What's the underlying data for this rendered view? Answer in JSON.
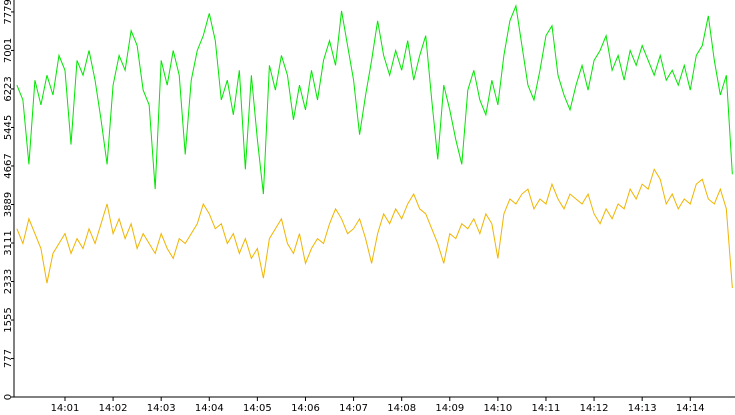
{
  "chart_data": {
    "type": "line",
    "x": [
      840,
      840.125,
      840.25,
      840.375,
      840.5,
      840.625,
      840.75,
      840.875,
      841,
      841.125,
      841.25,
      841.375,
      841.5,
      841.625,
      841.75,
      841.875,
      842,
      842.125,
      842.25,
      842.375,
      842.5,
      842.625,
      842.75,
      842.875,
      843,
      843.125,
      843.25,
      843.375,
      843.5,
      843.625,
      843.75,
      843.875,
      844,
      844.125,
      844.25,
      844.375,
      844.5,
      844.625,
      844.75,
      844.875,
      845,
      845.125,
      845.25,
      845.375,
      845.5,
      845.625,
      845.75,
      845.875,
      846,
      846.125,
      846.25,
      846.375,
      846.5,
      846.625,
      846.75,
      846.875,
      847,
      847.125,
      847.25,
      847.375,
      847.5,
      847.625,
      847.75,
      847.875,
      848,
      848.125,
      848.25,
      848.375,
      848.5,
      848.625,
      848.75,
      848.875,
      849,
      849.125,
      849.25,
      849.375,
      849.5,
      849.625,
      849.75,
      849.875,
      850,
      850.125,
      850.25,
      850.375,
      850.5,
      850.625,
      850.75,
      850.875,
      851,
      851.125,
      851.25,
      851.375,
      851.5,
      851.625,
      851.75,
      851.875,
      852,
      852.125,
      852.25,
      852.375,
      852.5,
      852.625,
      852.75,
      852.875,
      853,
      853.125,
      853.25,
      853.375,
      853.5,
      853.625,
      853.75,
      853.875,
      854,
      854.125,
      854.25,
      854.375,
      854.5,
      854.625,
      854.75,
      854.875
    ],
    "series": [
      {
        "color": "#00e600",
        "values": [
          6300,
          6000,
          4700,
          6400,
          5900,
          6500,
          6100,
          6900,
          6600,
          5100,
          6800,
          6500,
          7000,
          6400,
          5600,
          4700,
          6300,
          6900,
          6600,
          7400,
          7100,
          6200,
          5900,
          4200,
          6800,
          6300,
          7000,
          6500,
          4900,
          6400,
          7000,
          7300,
          7750,
          7200,
          6000,
          6400,
          5700,
          6600,
          4600,
          6500,
          5200,
          4100,
          6700,
          6200,
          6900,
          6500,
          5600,
          6300,
          5800,
          6600,
          6000,
          6800,
          7200,
          6700,
          7800,
          7100,
          6400,
          5300,
          6100,
          6800,
          7600,
          6900,
          6500,
          7000,
          6600,
          7200,
          6400,
          6900,
          7300,
          6000,
          4800,
          6300,
          5800,
          5200,
          4700,
          6200,
          6600,
          6000,
          5700,
          6400,
          5900,
          6900,
          7600,
          7900,
          7100,
          6300,
          6000,
          6600,
          7300,
          7500,
          6500,
          6100,
          5800,
          6300,
          6700,
          6200,
          6800,
          7000,
          7300,
          6600,
          6900,
          6400,
          7000,
          6700,
          7100,
          6800,
          6500,
          6900,
          6400,
          6600,
          6300,
          6700,
          6200,
          6900,
          7100,
          7700,
          6800,
          6100,
          6500,
          4500
        ]
      },
      {
        "color": "#f0b400",
        "values": [
          3400,
          3100,
          3600,
          3300,
          3000,
          2300,
          2900,
          3100,
          3300,
          2900,
          3200,
          3000,
          3400,
          3100,
          3500,
          3900,
          3300,
          3600,
          3200,
          3500,
          3000,
          3300,
          3100,
          2900,
          3300,
          3000,
          2800,
          3200,
          3100,
          3300,
          3500,
          3900,
          3700,
          3400,
          3500,
          3100,
          3300,
          2900,
          3200,
          2800,
          3000,
          2400,
          3200,
          3400,
          3600,
          3100,
          2900,
          3300,
          2700,
          3000,
          3200,
          3100,
          3500,
          3800,
          3600,
          3300,
          3400,
          3600,
          3200,
          2700,
          3300,
          3700,
          3500,
          3800,
          3600,
          3900,
          4100,
          3800,
          3700,
          3400,
          3100,
          2700,
          3300,
          3200,
          3500,
          3400,
          3600,
          3300,
          3700,
          3500,
          2800,
          3700,
          4000,
          3900,
          4100,
          4200,
          3800,
          4000,
          3900,
          4300,
          4000,
          3800,
          4100,
          4000,
          3900,
          4100,
          3700,
          3500,
          3800,
          3600,
          3900,
          3800,
          4200,
          4000,
          4300,
          4200,
          4600,
          4400,
          3900,
          4100,
          3800,
          4000,
          3900,
          4300,
          4400,
          4000,
          3900,
          4200,
          3800,
          2200
        ]
      }
    ],
    "xlim": [
      839.94,
      854.93
    ],
    "xticks": [
      {
        "value": 841,
        "label": "14:01"
      },
      {
        "value": 842,
        "label": "14:02"
      },
      {
        "value": 843,
        "label": "14:03"
      },
      {
        "value": 844,
        "label": "14:04"
      },
      {
        "value": 845,
        "label": "14:05"
      },
      {
        "value": 846,
        "label": "14:06"
      },
      {
        "value": 847,
        "label": "14:07"
      },
      {
        "value": 848,
        "label": "14:08"
      },
      {
        "value": 849,
        "label": "14:09"
      },
      {
        "value": 850,
        "label": "14:10"
      },
      {
        "value": 851,
        "label": "14:11"
      },
      {
        "value": 852,
        "label": "14:12"
      },
      {
        "value": 853,
        "label": "14:13"
      },
      {
        "value": 854,
        "label": "14:14"
      }
    ],
    "ylim": [
      0,
      8020
    ],
    "yticks": [
      0,
      777,
      1555,
      2333,
      3111,
      3889,
      4667,
      5445,
      6223,
      7001,
      7779
    ]
  }
}
